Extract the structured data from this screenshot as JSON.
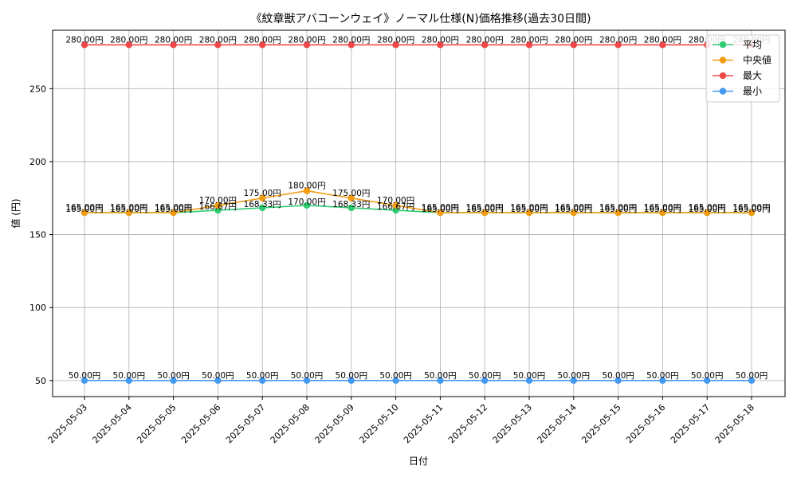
{
  "chart_data": {
    "type": "line",
    "title": "《紋章獣アバコーンウェイ》ノーマル仕様(N)価格推移(過去30日間)",
    "xlabel": "日付",
    "ylabel": "値 (円)",
    "ylim": [
      39,
      290
    ],
    "yticks": [
      50,
      100,
      150,
      200,
      250
    ],
    "grid": true,
    "legend_position": "top-right",
    "value_suffix": "円",
    "categories": [
      "2025-05-03",
      "2025-05-04",
      "2025-05-05",
      "2025-05-06",
      "2025-05-07",
      "2025-05-08",
      "2025-05-09",
      "2025-05-10",
      "2025-05-11",
      "2025-05-12",
      "2025-05-13",
      "2025-05-14",
      "2025-05-15",
      "2025-05-16",
      "2025-05-17",
      "2025-05-18"
    ],
    "series": [
      {
        "name": "平均",
        "color": "#2ecc71",
        "values": [
          165.0,
          165.0,
          165.0,
          166.67,
          168.33,
          170.0,
          168.33,
          166.67,
          165.0,
          165.0,
          165.0,
          165.0,
          165.0,
          165.0,
          165.0,
          165.0
        ],
        "label_offset": 1
      },
      {
        "name": "中央値",
        "color": "#f39c12",
        "values": [
          165.0,
          165.0,
          165.0,
          170.0,
          175.0,
          180.0,
          175.0,
          170.0,
          165.0,
          165.0,
          165.0,
          165.0,
          165.0,
          165.0,
          165.0,
          165.0
        ],
        "label_offset": -1
      },
      {
        "name": "最大",
        "color": "#f04848",
        "values": [
          280.0,
          280.0,
          280.0,
          280.0,
          280.0,
          280.0,
          280.0,
          280.0,
          280.0,
          280.0,
          280.0,
          280.0,
          280.0,
          280.0,
          280.0,
          280.0
        ],
        "label_offset": -1
      },
      {
        "name": "最小",
        "color": "#4499f0",
        "values": [
          50.0,
          50.0,
          50.0,
          50.0,
          50.0,
          50.0,
          50.0,
          50.0,
          50.0,
          50.0,
          50.0,
          50.0,
          50.0,
          50.0,
          50.0,
          50.0
        ],
        "label_offset": -1
      }
    ]
  }
}
